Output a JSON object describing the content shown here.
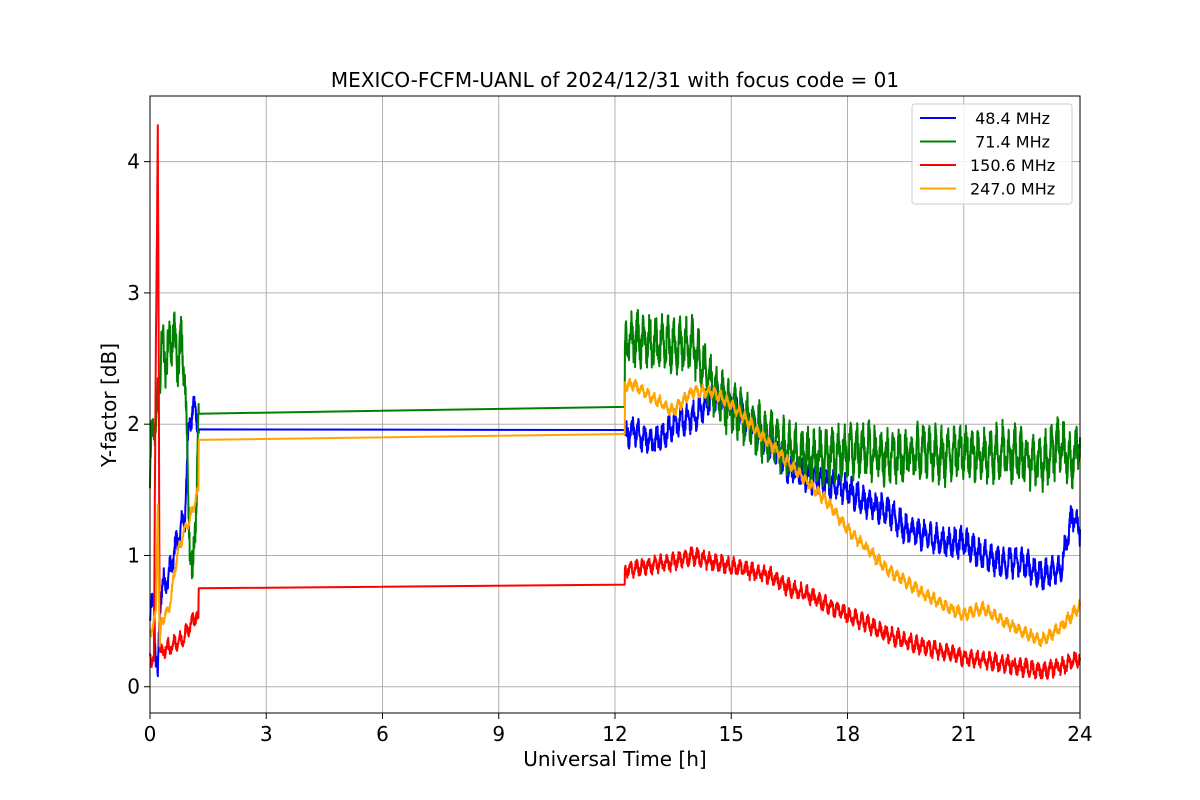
{
  "chart_data": {
    "type": "line",
    "title": "MEXICO-FCFM-UANL of 2024/12/31 with focus code = 01",
    "xlabel": "Universal Time [h]",
    "ylabel": "Y-factor [dB]",
    "xlim": [
      0,
      24
    ],
    "ylim": [
      -0.2,
      4.5
    ],
    "xticks": [
      0,
      3,
      6,
      9,
      12,
      15,
      18,
      21,
      24
    ],
    "yticks": [
      0,
      1,
      2,
      3,
      4
    ],
    "grid": true,
    "legend_position": "top-right",
    "series": [
      {
        "name": " 48.4 MHz",
        "color": "#0000ff",
        "x": [
          0,
          0.05,
          0.1,
          0.15,
          0.2,
          0.25,
          0.3,
          0.4,
          0.5,
          0.6,
          0.7,
          0.8,
          0.9,
          1.0,
          1.1,
          1.2,
          1.25,
          1.26,
          12.25,
          12.26,
          12.5,
          13.0,
          13.5,
          14.0,
          14.5,
          15.0,
          15.5,
          16.0,
          16.5,
          17.0,
          17.5,
          18.0,
          18.5,
          19.0,
          19.5,
          20.0,
          20.5,
          21.0,
          21.5,
          22.0,
          22.5,
          23.0,
          23.5,
          23.8,
          24.0
        ],
        "y": [
          0.5,
          0.6,
          0.7,
          0.2,
          0.05,
          0.6,
          0.75,
          0.8,
          0.85,
          1.0,
          1.1,
          1.2,
          1.3,
          2.0,
          2.1,
          2.1,
          1.95,
          1.96,
          1.97,
          1.9,
          1.95,
          1.85,
          2.0,
          2.05,
          2.2,
          2.15,
          2.0,
          1.85,
          1.65,
          1.6,
          1.55,
          1.5,
          1.4,
          1.35,
          1.2,
          1.15,
          1.1,
          1.1,
          1.0,
          0.95,
          0.95,
          0.85,
          0.9,
          1.3,
          1.2
        ],
        "noise": 0.12
      },
      {
        "name": " 71.4 MHz",
        "color": "#008000",
        "x": [
          0,
          0.05,
          0.1,
          0.15,
          0.2,
          0.3,
          0.4,
          0.5,
          0.6,
          0.7,
          0.8,
          0.9,
          1.0,
          1.1,
          1.2,
          1.25,
          1.26,
          12.25,
          12.26,
          12.5,
          13.0,
          13.5,
          14.0,
          14.5,
          15.0,
          15.5,
          16.0,
          16.5,
          17.0,
          17.5,
          18.0,
          18.5,
          19.0,
          19.5,
          20.0,
          20.5,
          21.0,
          21.5,
          22.0,
          22.5,
          23.0,
          23.5,
          23.8,
          24.0
        ],
        "y": [
          1.5,
          2.0,
          2.1,
          1.8,
          2.2,
          2.6,
          2.5,
          2.6,
          2.7,
          2.5,
          2.6,
          2.4,
          1.3,
          0.8,
          1.5,
          2.08,
          2.08,
          2.11,
          2.6,
          2.65,
          2.6,
          2.6,
          2.6,
          2.3,
          2.1,
          2.0,
          1.9,
          1.8,
          1.75,
          1.75,
          1.8,
          1.8,
          1.75,
          1.75,
          1.8,
          1.75,
          1.8,
          1.75,
          1.8,
          1.75,
          1.7,
          1.85,
          1.7,
          1.9
        ],
        "noise": 0.22
      },
      {
        "name": "150.6 MHz",
        "color": "#ff0000",
        "x": [
          0,
          0.05,
          0.1,
          0.15,
          0.18,
          0.2,
          0.22,
          0.25,
          0.3,
          0.4,
          0.5,
          0.6,
          0.7,
          0.8,
          0.9,
          1.0,
          1.1,
          1.2,
          1.25,
          1.26,
          12.25,
          12.26,
          12.5,
          13.0,
          13.5,
          14.0,
          14.5,
          15.0,
          15.5,
          16.0,
          16.5,
          17.0,
          17.5,
          18.0,
          18.5,
          19.0,
          19.5,
          20.0,
          20.5,
          21.0,
          21.5,
          22.0,
          22.5,
          23.0,
          23.5,
          24.0
        ],
        "y": [
          0.2,
          0.2,
          0.25,
          2.5,
          3.4,
          4.28,
          3.0,
          0.3,
          0.25,
          0.3,
          0.3,
          0.32,
          0.35,
          0.35,
          0.4,
          0.45,
          0.5,
          0.55,
          0.5,
          0.75,
          0.76,
          0.9,
          0.9,
          0.93,
          0.95,
          1.0,
          0.95,
          0.92,
          0.88,
          0.85,
          0.75,
          0.7,
          0.62,
          0.55,
          0.48,
          0.4,
          0.35,
          0.3,
          0.27,
          0.22,
          0.2,
          0.18,
          0.15,
          0.12,
          0.15,
          0.22
        ],
        "noise": 0.07
      },
      {
        "name": "247.0 MHz",
        "color": "#ffa500",
        "x": [
          0,
          0.05,
          0.1,
          0.15,
          0.2,
          0.25,
          0.3,
          0.4,
          0.5,
          0.6,
          0.7,
          0.8,
          0.9,
          1.0,
          1.1,
          1.2,
          1.25,
          1.26,
          12.25,
          12.26,
          12.5,
          13.0,
          13.5,
          14.0,
          14.5,
          15.0,
          15.5,
          16.0,
          16.5,
          17.0,
          17.5,
          18.0,
          18.5,
          19.0,
          19.5,
          20.0,
          20.5,
          21.0,
          21.5,
          22.0,
          22.5,
          23.0,
          23.5,
          24.0
        ],
        "y": [
          0.4,
          0.45,
          0.5,
          0.55,
          1.4,
          0.3,
          0.5,
          0.55,
          0.6,
          0.8,
          1.0,
          1.1,
          1.2,
          1.25,
          1.35,
          1.45,
          1.5,
          1.88,
          1.9,
          2.3,
          2.3,
          2.2,
          2.1,
          2.25,
          2.25,
          2.15,
          2.0,
          1.85,
          1.7,
          1.55,
          1.4,
          1.2,
          1.05,
          0.9,
          0.8,
          0.7,
          0.62,
          0.55,
          0.6,
          0.5,
          0.42,
          0.35,
          0.45,
          0.62
        ],
        "noise": 0.05
      }
    ]
  }
}
